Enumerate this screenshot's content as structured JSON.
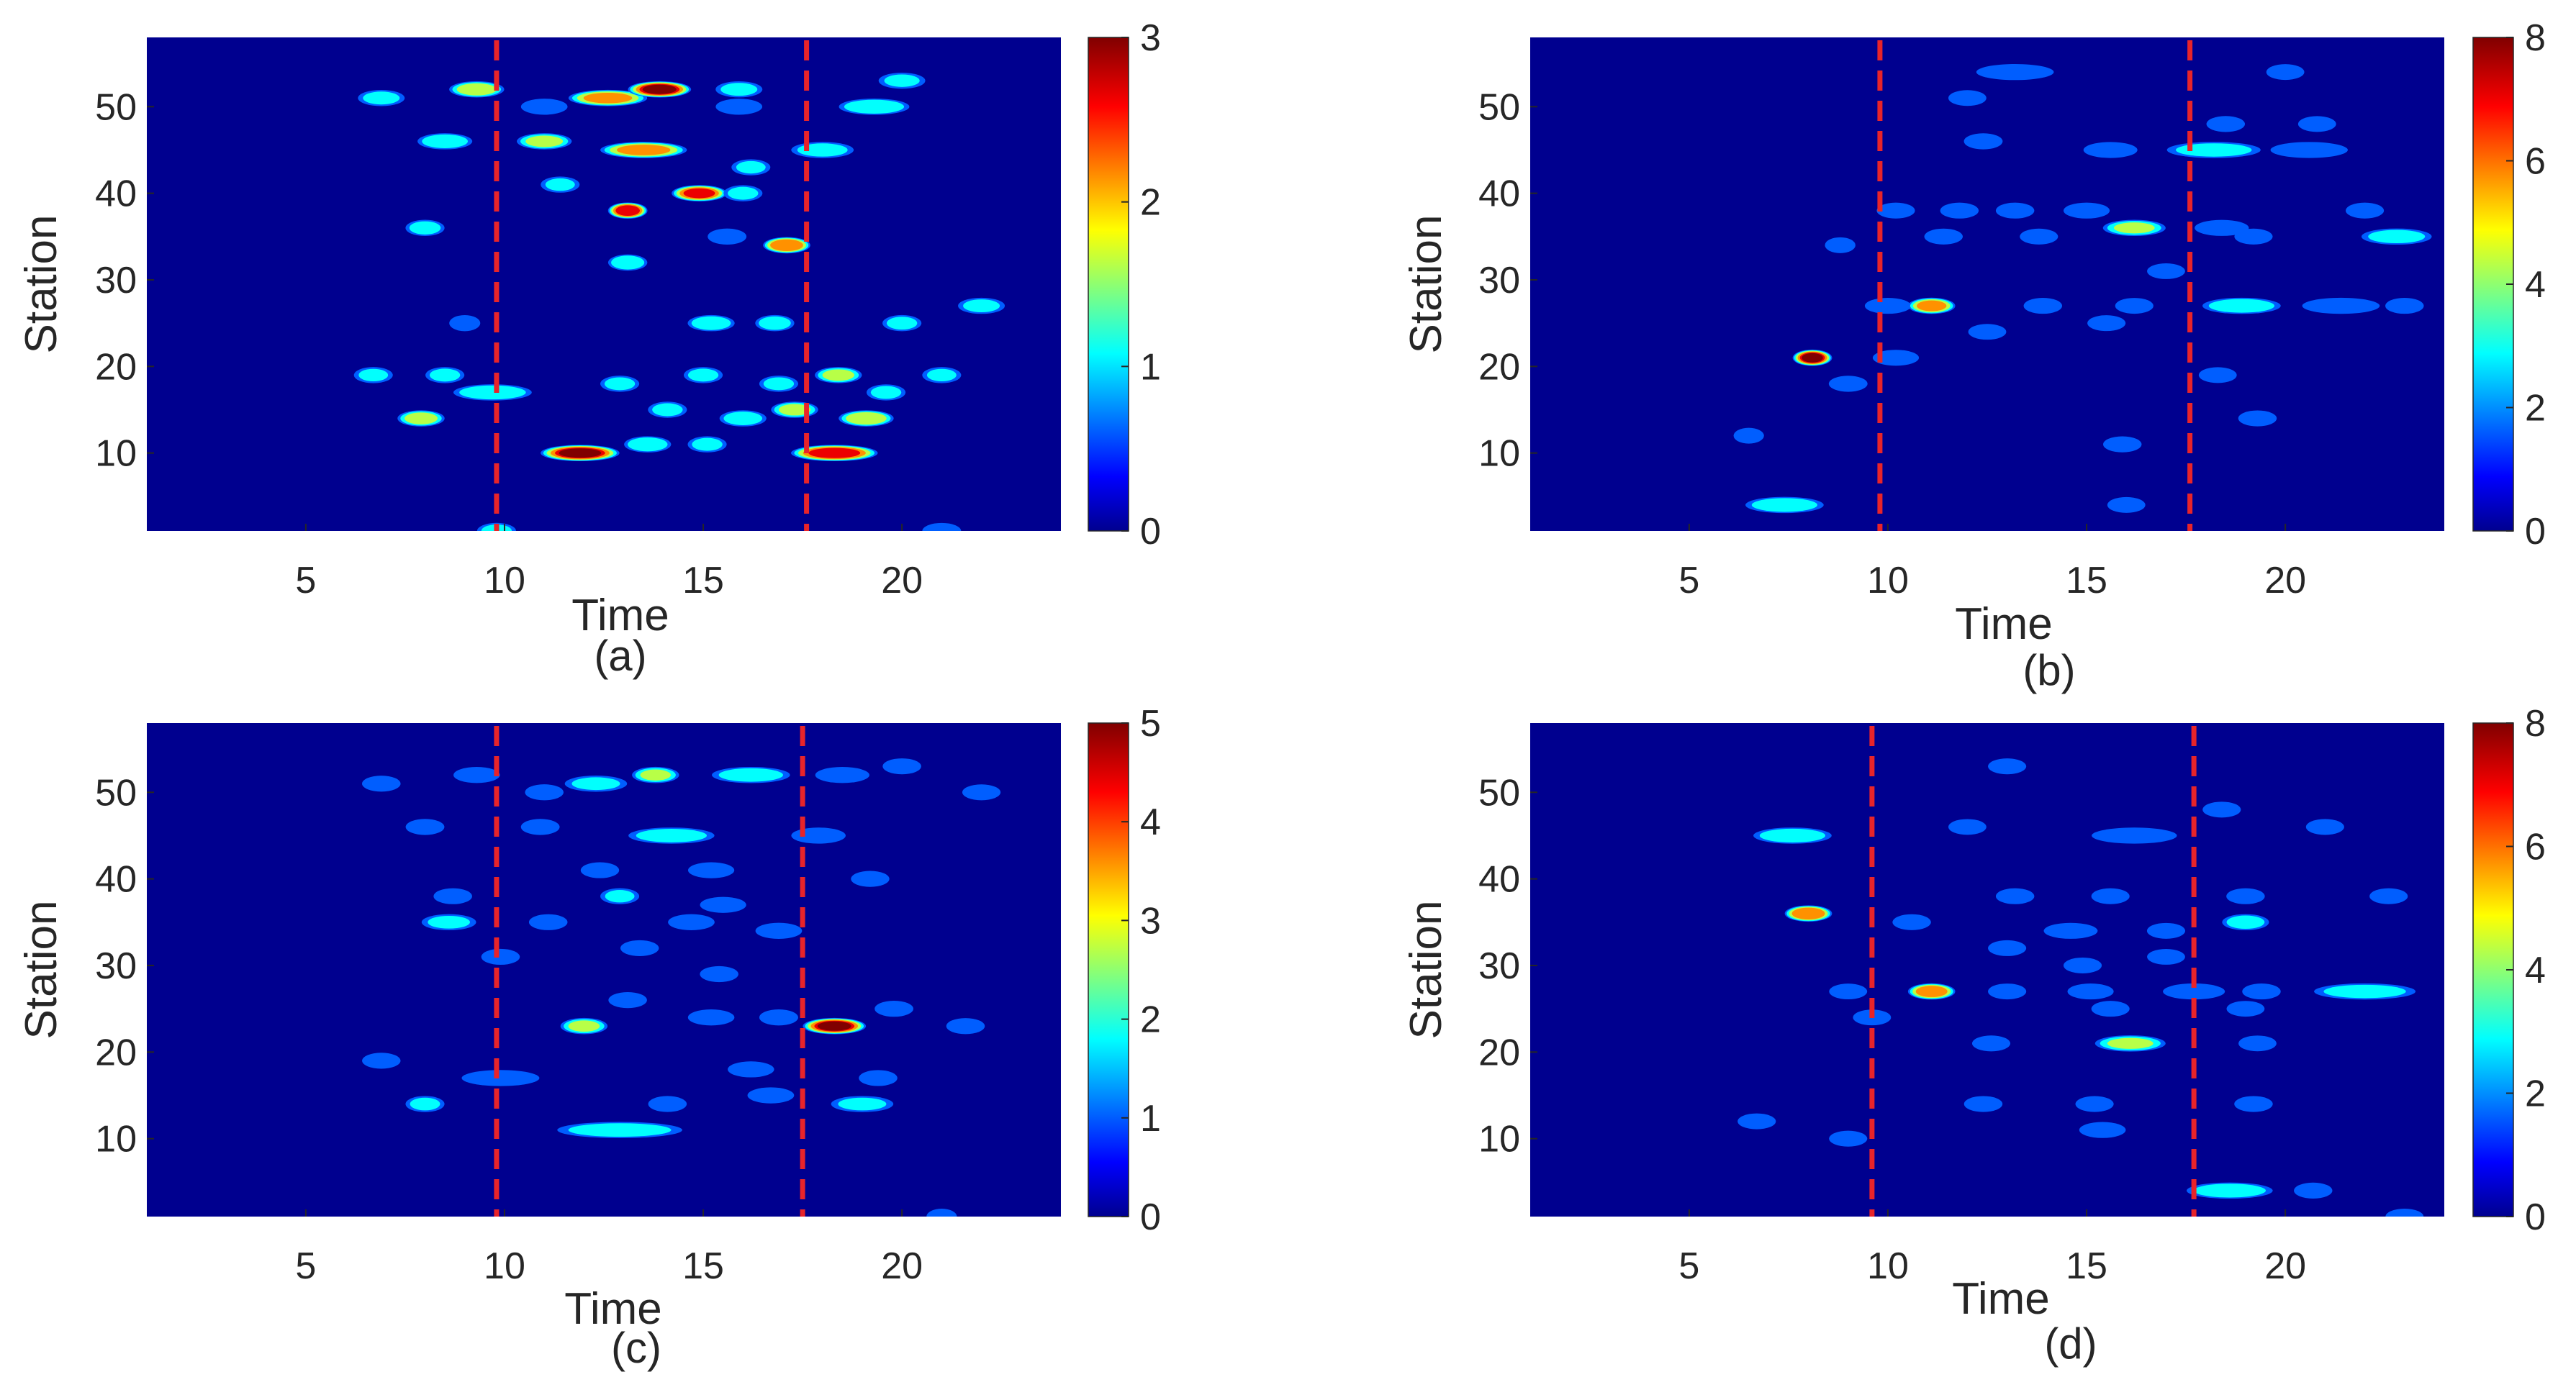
{
  "figure": {
    "colormap": "jet",
    "background_color": "#00008f",
    "marker_color": "#e8242a"
  },
  "chart_data": [
    {
      "type": "heatmap",
      "panel": "(a)",
      "xlabel": "Time",
      "ylabel": "Station",
      "xlim": [
        1,
        24
      ],
      "ylim": [
        1,
        58
      ],
      "xticks": [
        5,
        10,
        15,
        20
      ],
      "yticks": [
        10,
        20,
        30,
        40,
        50
      ],
      "colorbar": {
        "min": 0,
        "max": 3,
        "ticks": [
          0,
          1,
          2,
          3
        ]
      },
      "vlines": [
        9.8,
        17.6
      ],
      "hotspots": [
        {
          "t": 6.9,
          "s": 51,
          "v": 1.0,
          "w": 0.6
        },
        {
          "t": 8.5,
          "s": 46,
          "v": 1.3,
          "w": 0.7
        },
        {
          "t": 9.3,
          "s": 52,
          "v": 1.8,
          "w": 0.7
        },
        {
          "t": 11.0,
          "s": 50,
          "v": 0.8,
          "w": 0.6
        },
        {
          "t": 12.6,
          "s": 51,
          "v": 2.2,
          "w": 1.0
        },
        {
          "t": 13.9,
          "s": 52,
          "v": 3.0,
          "w": 0.8
        },
        {
          "t": 15.9,
          "s": 52,
          "v": 1.0,
          "w": 0.6
        },
        {
          "t": 15.9,
          "s": 50,
          "v": 0.8,
          "w": 0.6
        },
        {
          "t": 19.3,
          "s": 50,
          "v": 1.4,
          "w": 0.9
        },
        {
          "t": 20.0,
          "s": 53,
          "v": 0.9,
          "w": 0.6
        },
        {
          "t": 11.0,
          "s": 46,
          "v": 1.6,
          "w": 0.7
        },
        {
          "t": 13.5,
          "s": 45,
          "v": 2.2,
          "w": 1.1
        },
        {
          "t": 16.2,
          "s": 43,
          "v": 0.9,
          "w": 0.5
        },
        {
          "t": 18.0,
          "s": 45,
          "v": 1.1,
          "w": 0.8
        },
        {
          "t": 11.4,
          "s": 41,
          "v": 0.9,
          "w": 0.5
        },
        {
          "t": 14.9,
          "s": 40,
          "v": 2.7,
          "w": 0.7
        },
        {
          "t": 16.0,
          "s": 40,
          "v": 1.0,
          "w": 0.5
        },
        {
          "t": 13.1,
          "s": 38,
          "v": 2.9,
          "w": 0.5
        },
        {
          "t": 8.0,
          "s": 36,
          "v": 1.1,
          "w": 0.5
        },
        {
          "t": 15.6,
          "s": 35,
          "v": 0.8,
          "w": 0.5
        },
        {
          "t": 17.1,
          "s": 34,
          "v": 2.6,
          "w": 0.6
        },
        {
          "t": 13.1,
          "s": 32,
          "v": 1.4,
          "w": 0.5
        },
        {
          "t": 22.0,
          "s": 27,
          "v": 1.0,
          "w": 0.6
        },
        {
          "t": 9.0,
          "s": 25,
          "v": 0.8,
          "w": 0.4
        },
        {
          "t": 15.2,
          "s": 25,
          "v": 1.3,
          "w": 0.6
        },
        {
          "t": 16.8,
          "s": 25,
          "v": 1.2,
          "w": 0.5
        },
        {
          "t": 20.0,
          "s": 25,
          "v": 1.0,
          "w": 0.5
        },
        {
          "t": 6.7,
          "s": 19,
          "v": 0.9,
          "w": 0.5
        },
        {
          "t": 8.5,
          "s": 19,
          "v": 1.0,
          "w": 0.5
        },
        {
          "t": 9.7,
          "s": 17,
          "v": 1.4,
          "w": 1.0
        },
        {
          "t": 12.9,
          "s": 18,
          "v": 1.0,
          "w": 0.5
        },
        {
          "t": 15.0,
          "s": 19,
          "v": 1.0,
          "w": 0.5
        },
        {
          "t": 16.9,
          "s": 18,
          "v": 1.0,
          "w": 0.5
        },
        {
          "t": 18.4,
          "s": 19,
          "v": 1.6,
          "w": 0.6
        },
        {
          "t": 19.6,
          "s": 17,
          "v": 1.0,
          "w": 0.5
        },
        {
          "t": 21.0,
          "s": 19,
          "v": 0.9,
          "w": 0.5
        },
        {
          "t": 7.9,
          "s": 14,
          "v": 1.7,
          "w": 0.6
        },
        {
          "t": 14.1,
          "s": 15,
          "v": 1.0,
          "w": 0.5
        },
        {
          "t": 16.0,
          "s": 14,
          "v": 1.2,
          "w": 0.6
        },
        {
          "t": 17.3,
          "s": 15,
          "v": 1.6,
          "w": 0.6
        },
        {
          "t": 19.1,
          "s": 14,
          "v": 1.9,
          "w": 0.7
        },
        {
          "t": 11.9,
          "s": 10,
          "v": 3.0,
          "w": 1.0
        },
        {
          "t": 13.6,
          "s": 11,
          "v": 1.4,
          "w": 0.6
        },
        {
          "t": 15.1,
          "s": 11,
          "v": 1.0,
          "w": 0.5
        },
        {
          "t": 18.3,
          "s": 10,
          "v": 2.8,
          "w": 1.1
        },
        {
          "t": 9.8,
          "s": 1,
          "v": 1.0,
          "w": 0.5
        },
        {
          "t": 21.0,
          "s": 1,
          "v": 0.8,
          "w": 0.5
        }
      ]
    },
    {
      "type": "heatmap",
      "panel": "(b)",
      "xlabel": "Time",
      "ylabel": "Station",
      "xlim": [
        1,
        24
      ],
      "ylim": [
        1,
        58
      ],
      "xticks": [
        5,
        10,
        15,
        20
      ],
      "yticks": [
        10,
        20,
        30,
        40,
        50
      ],
      "colorbar": {
        "min": 0,
        "max": 8,
        "ticks": [
          0,
          2,
          4,
          6,
          8
        ]
      },
      "vlines": [
        9.8,
        17.6
      ],
      "hotspots": [
        {
          "t": 13.2,
          "s": 54,
          "v": 2.0,
          "w": 1.0
        },
        {
          "t": 20.0,
          "s": 54,
          "v": 1.0,
          "w": 0.5
        },
        {
          "t": 12.0,
          "s": 51,
          "v": 1.0,
          "w": 0.5
        },
        {
          "t": 18.5,
          "s": 48,
          "v": 1.5,
          "w": 0.5
        },
        {
          "t": 20.8,
          "s": 48,
          "v": 1.0,
          "w": 0.5
        },
        {
          "t": 12.4,
          "s": 46,
          "v": 2.0,
          "w": 0.5
        },
        {
          "t": 15.6,
          "s": 45,
          "v": 1.6,
          "w": 0.7
        },
        {
          "t": 18.2,
          "s": 45,
          "v": 3.0,
          "w": 1.2
        },
        {
          "t": 20.6,
          "s": 45,
          "v": 1.8,
          "w": 1.0
        },
        {
          "t": 10.2,
          "s": 38,
          "v": 1.2,
          "w": 0.5
        },
        {
          "t": 11.8,
          "s": 38,
          "v": 1.5,
          "w": 0.5
        },
        {
          "t": 13.2,
          "s": 38,
          "v": 1.5,
          "w": 0.5
        },
        {
          "t": 15.0,
          "s": 38,
          "v": 1.5,
          "w": 0.6
        },
        {
          "t": 16.2,
          "s": 36,
          "v": 4.0,
          "w": 0.8
        },
        {
          "t": 18.4,
          "s": 36,
          "v": 2.0,
          "w": 0.7
        },
        {
          "t": 19.2,
          "s": 35,
          "v": 1.2,
          "w": 0.5
        },
        {
          "t": 22.8,
          "s": 35,
          "v": 3.0,
          "w": 0.9
        },
        {
          "t": 22.0,
          "s": 38,
          "v": 1.2,
          "w": 0.5
        },
        {
          "t": 8.8,
          "s": 34,
          "v": 1.2,
          "w": 0.4
        },
        {
          "t": 11.4,
          "s": 35,
          "v": 1.5,
          "w": 0.5
        },
        {
          "t": 13.8,
          "s": 35,
          "v": 1.2,
          "w": 0.5
        },
        {
          "t": 17.0,
          "s": 31,
          "v": 1.0,
          "w": 0.5
        },
        {
          "t": 10.0,
          "s": 27,
          "v": 1.5,
          "w": 0.6
        },
        {
          "t": 11.1,
          "s": 27,
          "v": 6.0,
          "w": 0.6
        },
        {
          "t": 13.9,
          "s": 27,
          "v": 1.5,
          "w": 0.5
        },
        {
          "t": 16.2,
          "s": 27,
          "v": 1.2,
          "w": 0.5
        },
        {
          "t": 18.9,
          "s": 27,
          "v": 3.5,
          "w": 1.0
        },
        {
          "t": 21.4,
          "s": 27,
          "v": 2.0,
          "w": 1.0
        },
        {
          "t": 23.0,
          "s": 27,
          "v": 1.5,
          "w": 0.5
        },
        {
          "t": 15.5,
          "s": 25,
          "v": 1.2,
          "w": 0.5
        },
        {
          "t": 12.5,
          "s": 24,
          "v": 1.0,
          "w": 0.5
        },
        {
          "t": 8.1,
          "s": 21,
          "v": 8.0,
          "w": 0.5
        },
        {
          "t": 10.2,
          "s": 21,
          "v": 1.5,
          "w": 0.6
        },
        {
          "t": 9.0,
          "s": 18,
          "v": 2.0,
          "w": 0.5
        },
        {
          "t": 18.3,
          "s": 19,
          "v": 1.0,
          "w": 0.5
        },
        {
          "t": 19.3,
          "s": 14,
          "v": 1.5,
          "w": 0.5
        },
        {
          "t": 15.9,
          "s": 11,
          "v": 1.5,
          "w": 0.5
        },
        {
          "t": 6.5,
          "s": 12,
          "v": 1.0,
          "w": 0.4
        },
        {
          "t": 7.4,
          "s": 4,
          "v": 3.5,
          "w": 1.0
        },
        {
          "t": 16.0,
          "s": 4,
          "v": 1.0,
          "w": 0.5
        }
      ]
    },
    {
      "type": "heatmap",
      "panel": "(c)",
      "xlabel": "Time",
      "ylabel": "Station",
      "xlim": [
        1,
        24
      ],
      "ylim": [
        1,
        58
      ],
      "xticks": [
        5,
        10,
        15,
        20
      ],
      "yticks": [
        10,
        20,
        30,
        40,
        50
      ],
      "colorbar": {
        "min": 0,
        "max": 5,
        "ticks": [
          0,
          1,
          2,
          3,
          4,
          5
        ]
      },
      "vlines": [
        9.8,
        17.5
      ],
      "hotspots": [
        {
          "t": 6.9,
          "s": 51,
          "v": 1.0,
          "w": 0.5
        },
        {
          "t": 9.3,
          "s": 52,
          "v": 1.2,
          "w": 0.6
        },
        {
          "t": 12.3,
          "s": 51,
          "v": 1.6,
          "w": 0.8
        },
        {
          "t": 13.8,
          "s": 52,
          "v": 2.5,
          "w": 0.6
        },
        {
          "t": 16.2,
          "s": 52,
          "v": 2.0,
          "w": 1.0
        },
        {
          "t": 18.5,
          "s": 52,
          "v": 1.2,
          "w": 0.7
        },
        {
          "t": 20.0,
          "s": 53,
          "v": 1.0,
          "w": 0.5
        },
        {
          "t": 22.0,
          "s": 50,
          "v": 0.8,
          "w": 0.5
        },
        {
          "t": 11.0,
          "s": 50,
          "v": 1.0,
          "w": 0.5
        },
        {
          "t": 8.0,
          "s": 46,
          "v": 1.2,
          "w": 0.5
        },
        {
          "t": 10.9,
          "s": 46,
          "v": 1.2,
          "w": 0.5
        },
        {
          "t": 14.2,
          "s": 45,
          "v": 2.0,
          "w": 1.1
        },
        {
          "t": 17.9,
          "s": 45,
          "v": 1.4,
          "w": 0.7
        },
        {
          "t": 12.4,
          "s": 41,
          "v": 0.9,
          "w": 0.5
        },
        {
          "t": 15.2,
          "s": 41,
          "v": 1.0,
          "w": 0.6
        },
        {
          "t": 19.2,
          "s": 40,
          "v": 0.9,
          "w": 0.5
        },
        {
          "t": 8.7,
          "s": 38,
          "v": 1.0,
          "w": 0.5
        },
        {
          "t": 12.9,
          "s": 38,
          "v": 1.5,
          "w": 0.5
        },
        {
          "t": 15.5,
          "s": 37,
          "v": 1.0,
          "w": 0.6
        },
        {
          "t": 8.6,
          "s": 35,
          "v": 1.6,
          "w": 0.7
        },
        {
          "t": 11.1,
          "s": 35,
          "v": 1.0,
          "w": 0.5
        },
        {
          "t": 14.7,
          "s": 35,
          "v": 1.4,
          "w": 0.6
        },
        {
          "t": 16.9,
          "s": 34,
          "v": 1.4,
          "w": 0.6
        },
        {
          "t": 13.4,
          "s": 32,
          "v": 0.9,
          "w": 0.5
        },
        {
          "t": 9.9,
          "s": 31,
          "v": 1.0,
          "w": 0.5
        },
        {
          "t": 15.4,
          "s": 29,
          "v": 1.0,
          "w": 0.5
        },
        {
          "t": 13.1,
          "s": 26,
          "v": 1.0,
          "w": 0.5
        },
        {
          "t": 12.0,
          "s": 23,
          "v": 2.6,
          "w": 0.6
        },
        {
          "t": 15.2,
          "s": 24,
          "v": 1.2,
          "w": 0.6
        },
        {
          "t": 16.9,
          "s": 24,
          "v": 1.4,
          "w": 0.5
        },
        {
          "t": 18.3,
          "s": 23,
          "v": 5.0,
          "w": 0.8
        },
        {
          "t": 19.8,
          "s": 25,
          "v": 1.2,
          "w": 0.5
        },
        {
          "t": 21.6,
          "s": 23,
          "v": 1.0,
          "w": 0.5
        },
        {
          "t": 6.9,
          "s": 19,
          "v": 0.9,
          "w": 0.5
        },
        {
          "t": 9.9,
          "s": 17,
          "v": 1.4,
          "w": 1.0
        },
        {
          "t": 16.2,
          "s": 18,
          "v": 1.2,
          "w": 0.6
        },
        {
          "t": 19.4,
          "s": 17,
          "v": 1.0,
          "w": 0.5
        },
        {
          "t": 8.0,
          "s": 14,
          "v": 1.6,
          "w": 0.5
        },
        {
          "t": 14.1,
          "s": 14,
          "v": 1.0,
          "w": 0.5
        },
        {
          "t": 16.7,
          "s": 15,
          "v": 1.4,
          "w": 0.6
        },
        {
          "t": 19.0,
          "s": 14,
          "v": 1.6,
          "w": 0.8
        },
        {
          "t": 12.9,
          "s": 11,
          "v": 2.0,
          "w": 1.6
        },
        {
          "t": 21.0,
          "s": 1,
          "v": 0.6,
          "w": 0.4
        }
      ]
    },
    {
      "type": "heatmap",
      "panel": "(d)",
      "xlabel": "Time",
      "ylabel": "Station",
      "xlim": [
        1,
        24
      ],
      "ylim": [
        1,
        58
      ],
      "xticks": [
        5,
        10,
        15,
        20
      ],
      "yticks": [
        10,
        20,
        30,
        40,
        50
      ],
      "colorbar": {
        "min": 0,
        "max": 8,
        "ticks": [
          0,
          2,
          4,
          6,
          8
        ]
      },
      "vlines": [
        9.6,
        17.7
      ],
      "hotspots": [
        {
          "t": 13.0,
          "s": 53,
          "v": 1.2,
          "w": 0.5
        },
        {
          "t": 18.4,
          "s": 48,
          "v": 1.2,
          "w": 0.5
        },
        {
          "t": 7.6,
          "s": 45,
          "v": 3.5,
          "w": 1.0
        },
        {
          "t": 12.0,
          "s": 46,
          "v": 1.0,
          "w": 0.5
        },
        {
          "t": 16.2,
          "s": 45,
          "v": 2.0,
          "w": 1.1
        },
        {
          "t": 21.0,
          "s": 46,
          "v": 1.2,
          "w": 0.5
        },
        {
          "t": 13.2,
          "s": 38,
          "v": 1.5,
          "w": 0.5
        },
        {
          "t": 15.6,
          "s": 38,
          "v": 1.2,
          "w": 0.5
        },
        {
          "t": 19.0,
          "s": 38,
          "v": 1.5,
          "w": 0.5
        },
        {
          "t": 22.6,
          "s": 38,
          "v": 1.2,
          "w": 0.5
        },
        {
          "t": 8.0,
          "s": 36,
          "v": 7.0,
          "w": 0.6
        },
        {
          "t": 10.6,
          "s": 35,
          "v": 1.5,
          "w": 0.5
        },
        {
          "t": 14.6,
          "s": 34,
          "v": 1.5,
          "w": 0.7
        },
        {
          "t": 17.0,
          "s": 34,
          "v": 1.2,
          "w": 0.5
        },
        {
          "t": 19.0,
          "s": 35,
          "v": 3.0,
          "w": 0.6
        },
        {
          "t": 13.0,
          "s": 32,
          "v": 1.2,
          "w": 0.5
        },
        {
          "t": 14.9,
          "s": 30,
          "v": 1.2,
          "w": 0.5
        },
        {
          "t": 17.0,
          "s": 31,
          "v": 1.0,
          "w": 0.5
        },
        {
          "t": 9.0,
          "s": 27,
          "v": 1.0,
          "w": 0.5
        },
        {
          "t": 11.1,
          "s": 27,
          "v": 6.5,
          "w": 0.6
        },
        {
          "t": 13.0,
          "s": 27,
          "v": 1.2,
          "w": 0.5
        },
        {
          "t": 15.1,
          "s": 27,
          "v": 1.5,
          "w": 0.6
        },
        {
          "t": 17.7,
          "s": 27,
          "v": 2.0,
          "w": 0.8
        },
        {
          "t": 19.4,
          "s": 27,
          "v": 1.5,
          "w": 0.5
        },
        {
          "t": 22.0,
          "s": 27,
          "v": 3.0,
          "w": 1.3
        },
        {
          "t": 9.6,
          "s": 24,
          "v": 1.0,
          "w": 0.5
        },
        {
          "t": 15.6,
          "s": 25,
          "v": 1.2,
          "w": 0.5
        },
        {
          "t": 19.0,
          "s": 25,
          "v": 1.0,
          "w": 0.5
        },
        {
          "t": 12.6,
          "s": 21,
          "v": 1.2,
          "w": 0.5
        },
        {
          "t": 16.1,
          "s": 21,
          "v": 4.0,
          "w": 0.9
        },
        {
          "t": 19.3,
          "s": 21,
          "v": 1.0,
          "w": 0.5
        },
        {
          "t": 12.4,
          "s": 14,
          "v": 1.5,
          "w": 0.5
        },
        {
          "t": 15.2,
          "s": 14,
          "v": 1.2,
          "w": 0.5
        },
        {
          "t": 19.2,
          "s": 14,
          "v": 1.5,
          "w": 0.5
        },
        {
          "t": 6.7,
          "s": 12,
          "v": 1.2,
          "w": 0.5
        },
        {
          "t": 9.0,
          "s": 10,
          "v": 1.2,
          "w": 0.5
        },
        {
          "t": 15.4,
          "s": 11,
          "v": 2.0,
          "w": 0.6
        },
        {
          "t": 18.6,
          "s": 4,
          "v": 3.5,
          "w": 1.1
        },
        {
          "t": 20.7,
          "s": 4,
          "v": 1.5,
          "w": 0.5
        },
        {
          "t": 23.0,
          "s": 1,
          "v": 1.0,
          "w": 0.5
        }
      ]
    }
  ]
}
